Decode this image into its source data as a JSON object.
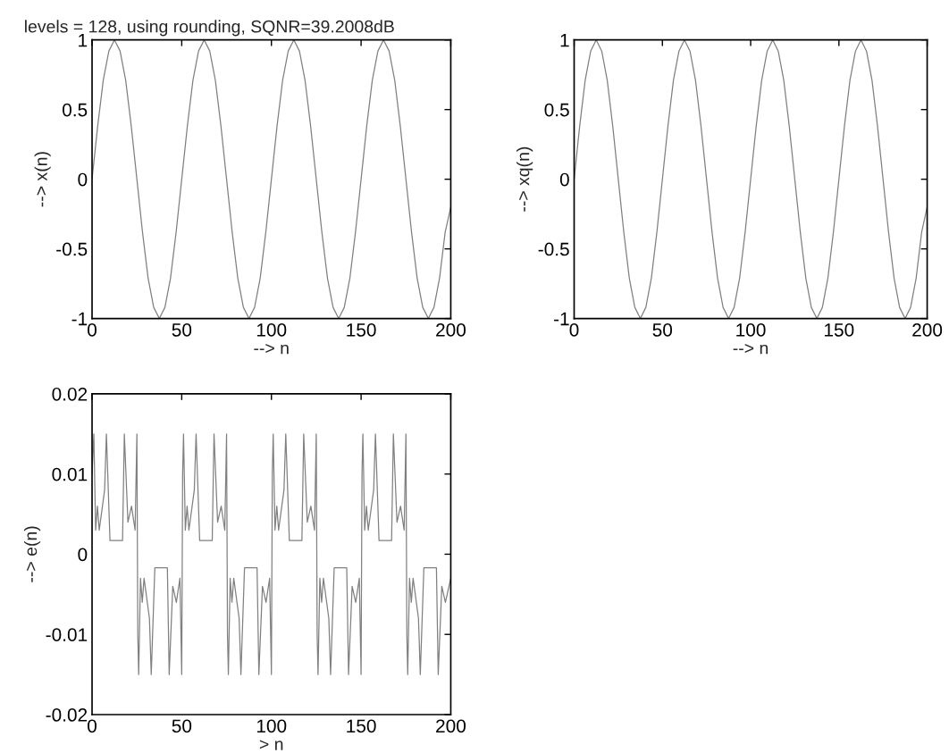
{
  "chart_data": [
    {
      "type": "line",
      "title": "levels = 128, using rounding, SQNR=39.2008dB",
      "xlabel": "--> n",
      "ylabel": "--> x(n)",
      "xlim": [
        0,
        200
      ],
      "ylim": [
        -1,
        1
      ],
      "xticks": [
        0,
        50,
        100,
        150,
        200
      ],
      "yticks": [
        -1,
        -0.5,
        0,
        0.5,
        1
      ],
      "grid": false,
      "legend": false,
      "marker": "none",
      "line_style": "solid",
      "x": [
        0,
        3.125,
        6.25,
        9.375,
        12.5,
        15.625,
        18.75,
        21.875,
        25,
        28.125,
        31.25,
        34.375,
        37.5,
        40.625,
        43.75,
        46.875,
        50,
        53.125,
        56.25,
        59.375,
        62.5,
        65.625,
        68.75,
        71.875,
        75,
        78.125,
        81.25,
        84.375,
        87.5,
        90.625,
        93.75,
        96.875,
        100,
        103.125,
        106.25,
        109.375,
        112.5,
        115.625,
        118.75,
        121.875,
        125,
        128.125,
        131.25,
        134.375,
        137.5,
        140.625,
        143.75,
        146.875,
        150,
        153.125,
        156.25,
        159.375,
        162.5,
        165.625,
        168.75,
        171.875,
        175,
        178.125,
        181.25,
        184.375,
        187.5,
        190.625,
        193.75,
        196.875,
        200
      ],
      "series": [
        {
          "color": "#808080",
          "values": [
            0,
            0.38,
            0.71,
            0.92,
            1,
            0.92,
            0.71,
            0.38,
            0,
            -0.38,
            -0.71,
            -0.92,
            -1,
            -0.92,
            -0.71,
            -0.38,
            0,
            0.38,
            0.71,
            0.92,
            1,
            0.92,
            0.71,
            0.38,
            0,
            -0.38,
            -0.71,
            -0.92,
            -1,
            -0.92,
            -0.71,
            -0.38,
            0,
            0.38,
            0.71,
            0.92,
            1,
            0.92,
            0.71,
            0.38,
            0,
            -0.38,
            -0.71,
            -0.92,
            -1,
            -0.92,
            -0.71,
            -0.38,
            0,
            0.38,
            0.71,
            0.92,
            1,
            0.92,
            0.71,
            0.38,
            0,
            -0.38,
            -0.71,
            -0.92,
            -1,
            -0.92,
            -0.71,
            -0.38,
            -0.2
          ]
        }
      ]
    },
    {
      "type": "line",
      "xlabel": "--> n",
      "ylabel": "--> xq(n)",
      "xlim": [
        0,
        200
      ],
      "ylim": [
        -1,
        1
      ],
      "xticks": [
        0,
        50,
        100,
        150,
        200
      ],
      "yticks": [
        -1,
        -0.5,
        0,
        0.5,
        1
      ],
      "grid": false,
      "legend": false,
      "marker": "none",
      "line_style": "solid",
      "x": [
        0,
        3.125,
        6.25,
        9.375,
        12.5,
        15.625,
        18.75,
        21.875,
        25,
        28.125,
        31.25,
        34.375,
        37.5,
        40.625,
        43.75,
        46.875,
        50,
        53.125,
        56.25,
        59.375,
        62.5,
        65.625,
        68.75,
        71.875,
        75,
        78.125,
        81.25,
        84.375,
        87.5,
        90.625,
        93.75,
        96.875,
        100,
        103.125,
        106.25,
        109.375,
        112.5,
        115.625,
        118.75,
        121.875,
        125,
        128.125,
        131.25,
        134.375,
        137.5,
        140.625,
        143.75,
        146.875,
        150,
        153.125,
        156.25,
        159.375,
        162.5,
        165.625,
        168.75,
        171.875,
        175,
        178.125,
        181.25,
        184.375,
        187.5,
        190.625,
        193.75,
        196.875,
        200
      ],
      "series": [
        {
          "color": "#808080",
          "values": [
            0,
            0.38,
            0.71,
            0.92,
            1,
            0.92,
            0.71,
            0.38,
            0,
            -0.38,
            -0.71,
            -0.92,
            -1,
            -0.92,
            -0.71,
            -0.38,
            0,
            0.38,
            0.71,
            0.92,
            1,
            0.92,
            0.71,
            0.38,
            0,
            -0.38,
            -0.71,
            -0.92,
            -1,
            -0.92,
            -0.71,
            -0.38,
            0,
            0.38,
            0.71,
            0.92,
            1,
            0.92,
            0.71,
            0.38,
            0,
            -0.38,
            -0.71,
            -0.92,
            -1,
            -0.92,
            -0.71,
            -0.38,
            0,
            0.38,
            0.71,
            0.92,
            1,
            0.92,
            0.71,
            0.38,
            0,
            -0.38,
            -0.71,
            -0.92,
            -1,
            -0.92,
            -0.71,
            -0.38,
            -0.2
          ]
        }
      ]
    },
    {
      "type": "line",
      "xlabel": "> n",
      "ylabel": "--> e(n)",
      "xlim": [
        0,
        200
      ],
      "ylim": [
        -0.02,
        0.02
      ],
      "xticks": [
        0,
        50,
        100,
        150,
        200
      ],
      "yticks": [
        -0.02,
        -0.01,
        0,
        0.01,
        0.02
      ],
      "grid": false,
      "legend": false,
      "marker": "none",
      "line_style": "solid",
      "x": [
        0,
        1,
        2,
        3,
        4,
        7,
        8,
        10,
        17,
        18,
        20,
        22,
        24,
        25,
        25.5,
        26,
        27,
        28,
        29,
        32,
        33,
        35,
        42,
        43,
        45,
        47,
        49,
        50,
        50.5,
        51,
        52,
        53,
        54,
        57,
        58,
        60,
        67,
        68,
        70,
        72,
        74,
        75,
        75.5,
        76,
        77,
        78,
        79,
        82,
        83,
        85,
        92,
        93,
        95,
        97,
        99,
        100,
        100.5,
        101,
        102,
        103,
        104,
        107,
        108,
        110,
        117,
        118,
        120,
        122,
        124,
        125,
        125.5,
        126,
        127,
        128,
        129,
        132,
        133,
        135,
        142,
        143,
        145,
        147,
        149,
        150,
        150.5,
        151,
        152,
        153,
        154,
        157,
        158,
        160,
        167,
        168,
        170,
        172,
        174,
        175,
        175.5,
        176,
        177,
        178,
        179,
        182,
        183,
        185,
        192,
        193,
        195,
        197,
        200
      ],
      "series": [
        {
          "color": "#808080",
          "values": [
            0.01,
            0.015,
            0.003,
            0.006,
            0.003,
            0.008,
            0.015,
            0.0017,
            0.0017,
            0.015,
            0.004,
            0.006,
            0.003,
            0.015,
            -0.01,
            -0.015,
            -0.003,
            -0.006,
            -0.003,
            -0.008,
            -0.015,
            -0.0017,
            -0.0017,
            -0.015,
            -0.004,
            -0.006,
            -0.003,
            -0.015,
            0.01,
            0.015,
            0.003,
            0.006,
            0.003,
            0.008,
            0.015,
            0.0017,
            0.0017,
            0.015,
            0.004,
            0.006,
            0.003,
            0.015,
            -0.01,
            -0.015,
            -0.003,
            -0.006,
            -0.003,
            -0.008,
            -0.015,
            -0.0017,
            -0.0017,
            -0.015,
            -0.004,
            -0.006,
            -0.003,
            -0.015,
            0.01,
            0.015,
            0.003,
            0.006,
            0.003,
            0.008,
            0.015,
            0.0017,
            0.0017,
            0.015,
            0.004,
            0.006,
            0.003,
            0.015,
            -0.01,
            -0.015,
            -0.003,
            -0.006,
            -0.003,
            -0.008,
            -0.015,
            -0.0017,
            -0.0017,
            -0.015,
            -0.004,
            -0.006,
            -0.003,
            -0.015,
            0.01,
            0.015,
            0.003,
            0.006,
            0.003,
            0.008,
            0.015,
            0.0017,
            0.0017,
            0.015,
            0.004,
            0.006,
            0.003,
            0.015,
            -0.01,
            -0.015,
            -0.003,
            -0.006,
            -0.003,
            -0.008,
            -0.015,
            -0.0017,
            -0.0017,
            -0.015,
            -0.004,
            -0.006,
            -0.003
          ]
        }
      ]
    }
  ]
}
